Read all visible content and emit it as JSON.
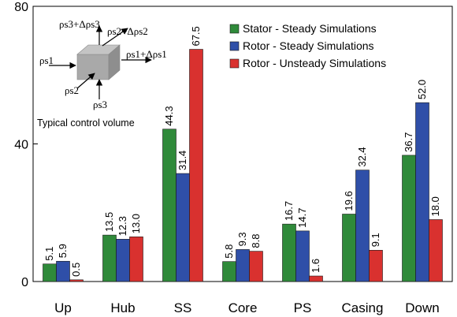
{
  "chart_data": {
    "type": "bar",
    "categories": [
      "Up",
      "Hub",
      "SS",
      "Core",
      "PS",
      "Casing",
      "Down"
    ],
    "series": [
      {
        "name": "Stator - Steady Simulations",
        "color": "#2f8a3a",
        "values": [
          5.1,
          13.5,
          44.3,
          5.8,
          16.7,
          19.6,
          36.7
        ]
      },
      {
        "name": "Rotor - Steady Simulations",
        "color": "#2f4fa8",
        "values": [
          5.9,
          12.3,
          31.4,
          9.3,
          14.7,
          32.4,
          52.0
        ]
      },
      {
        "name": "Rotor - Unsteady Simulations",
        "color": "#d9312f",
        "values": [
          0.5,
          13.0,
          67.5,
          8.8,
          1.6,
          9.1,
          18.0
        ]
      }
    ],
    "value_labels": [
      [
        "5.1",
        "13.5",
        "44.3",
        "5.8",
        "16.7",
        "19.6",
        "36.7"
      ],
      [
        "5.9",
        "12.3",
        "31.4",
        "9.3",
        "14.7",
        "32.4",
        "52.0"
      ],
      [
        "0.5",
        "13.0",
        "67.5",
        "8.8",
        "1.6",
        "9.1",
        "18.0"
      ]
    ],
    "ylim": [
      0,
      80
    ],
    "yticks": [
      0,
      40,
      80
    ],
    "legend_position": "top-right",
    "grid": false
  },
  "inset": {
    "caption": "Typical control volume",
    "labels": {
      "rho_s1": "ρs1",
      "rho_s2": "ρs2",
      "rho_s3": "ρs3",
      "rho_s1_plus": "ρs1+Δρs1",
      "rho_s2_plus": "ρs2+Δρs2",
      "rho_s3_plus": "ρs3+Δρs3"
    },
    "cube_color": "#a9a9a9"
  }
}
